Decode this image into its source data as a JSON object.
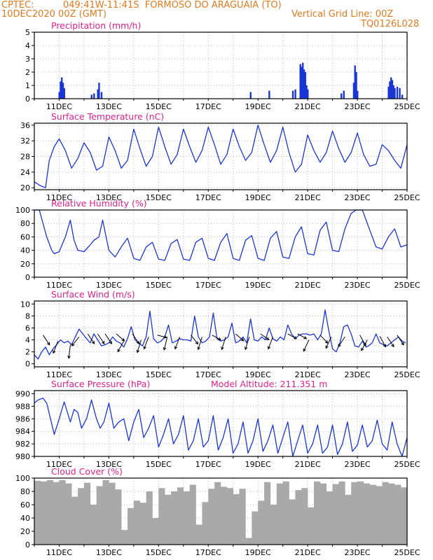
{
  "header": {
    "source": "CPTEC:",
    "location": "049:41W-11:41S  FORMOSO DO ARAGUAIA (TO)",
    "start_time": "10DEC2020 00Z (GMT)",
    "grid_note": "Vertical Grid Line: 00Z",
    "code": "TQ0126L028"
  },
  "x_labels": [
    "11DEC",
    "13DEC",
    "15DEC",
    "17DEC",
    "19DEC",
    "21DEC",
    "23DEC",
    "25DEC"
  ],
  "model_altitude": "Model Altitude: 211.351 m",
  "colors": {
    "line": "#1a35d6",
    "title": "#e0208c",
    "header": "#e07a1f",
    "cloud": "#a9a9a9",
    "arrow": "#000000"
  },
  "chart_data": [
    {
      "type": "bar",
      "title": "Precipitation (mm/h)",
      "x_unit": "days since 10DEC2020 00Z",
      "ylim": [
        0,
        5
      ],
      "yticks": [
        0,
        1,
        2,
        3,
        4,
        5
      ],
      "grid": "dotted",
      "x": [
        1.0,
        1.05,
        1.1,
        1.15,
        1.2,
        2.3,
        2.4,
        2.55,
        2.6,
        2.7,
        8.7,
        9.45,
        10.4,
        10.5,
        10.7,
        10.75,
        10.8,
        10.85,
        10.9,
        10.95,
        11.0,
        12.35,
        12.45,
        12.85,
        12.9,
        12.95,
        13.0,
        14.25,
        14.3,
        14.35,
        14.4,
        14.45,
        14.5,
        14.6,
        14.7,
        14.8
      ],
      "values": [
        0.5,
        1.3,
        1.6,
        1.2,
        0.8,
        0.3,
        0.4,
        0.7,
        1.2,
        0.5,
        0.5,
        0.6,
        0.6,
        0.7,
        2.6,
        2.4,
        2.7,
        2.2,
        2.0,
        1.0,
        0.7,
        0.4,
        0.6,
        1.2,
        2.5,
        2.0,
        0.6,
        0.9,
        1.3,
        1.6,
        1.4,
        1.0,
        0.8,
        0.9,
        0.8,
        0.3
      ]
    },
    {
      "type": "line",
      "title": "Surface Temperature (nC)",
      "x_unit": "days since 10DEC2020 00Z",
      "ylim": [
        19.5,
        36.5
      ],
      "yticks": [
        20,
        24,
        28,
        32,
        36
      ],
      "grid": "dotted",
      "x": [
        0,
        0.25,
        0.45,
        0.6,
        0.8,
        1.0,
        1.25,
        1.5,
        1.75,
        2.0,
        2.25,
        2.5,
        2.75,
        3.0,
        3.25,
        3.5,
        3.75,
        4.0,
        4.25,
        4.5,
        4.75,
        5.0,
        5.25,
        5.5,
        5.75,
        6.0,
        6.25,
        6.5,
        6.75,
        7.0,
        7.25,
        7.5,
        7.75,
        8.0,
        8.25,
        8.5,
        8.75,
        9.0,
        9.25,
        9.5,
        9.75,
        10.0,
        10.25,
        10.5,
        10.75,
        11.0,
        11.25,
        11.5,
        11.75,
        12.0,
        12.25,
        12.5,
        12.75,
        13.0,
        13.25,
        13.5,
        13.75,
        14.0,
        14.25,
        14.5,
        14.75,
        15.0
      ],
      "values": [
        21.5,
        20.5,
        20.0,
        27.0,
        30.5,
        32.5,
        29.5,
        25.0,
        27.5,
        31.5,
        29.0,
        24.5,
        25.5,
        33.0,
        29.5,
        25.0,
        27.0,
        35.0,
        30.0,
        25.5,
        28.0,
        35.5,
        30.5,
        26.0,
        28.5,
        35.0,
        30.5,
        26.5,
        29.5,
        35.5,
        31.0,
        26.0,
        28.5,
        35.0,
        30.5,
        27.0,
        29.0,
        36.0,
        31.0,
        26.5,
        29.5,
        35.5,
        29.0,
        24.0,
        26.0,
        33.5,
        29.5,
        26.5,
        29.0,
        34.5,
        30.0,
        26.5,
        29.0,
        34.0,
        28.5,
        25.5,
        26.0,
        31.0,
        29.5,
        27.0,
        25.0,
        31.0
      ]
    },
    {
      "type": "line",
      "title": "Relative Humidity (%)",
      "x_unit": "days since 10DEC2020 00Z",
      "ylim": [
        0,
        100
      ],
      "yticks": [
        0,
        20,
        40,
        60,
        80,
        100
      ],
      "grid": "dotted",
      "x": [
        0,
        0.2,
        0.5,
        0.7,
        0.8,
        1.0,
        1.25,
        1.45,
        1.6,
        1.75,
        2.0,
        2.25,
        2.4,
        2.6,
        2.75,
        3.0,
        3.25,
        3.5,
        3.75,
        4.0,
        4.25,
        4.5,
        4.75,
        5.0,
        5.25,
        5.5,
        5.75,
        6.0,
        6.25,
        6.5,
        6.75,
        7.0,
        7.25,
        7.5,
        7.75,
        8.0,
        8.25,
        8.5,
        8.75,
        9.0,
        9.25,
        9.5,
        9.75,
        10.0,
        10.25,
        10.5,
        10.75,
        11.0,
        11.25,
        11.5,
        11.75,
        12.0,
        12.25,
        12.5,
        12.75,
        12.95,
        13.2,
        13.5,
        13.75,
        14.0,
        14.25,
        14.5,
        14.75,
        15.0
      ],
      "values": [
        100,
        100,
        60,
        40,
        35,
        38,
        60,
        85,
        55,
        40,
        38,
        48,
        55,
        60,
        85,
        40,
        30,
        45,
        58,
        28,
        25,
        45,
        52,
        27,
        25,
        50,
        56,
        27,
        25,
        52,
        58,
        28,
        25,
        52,
        65,
        28,
        25,
        55,
        62,
        28,
        25,
        58,
        68,
        30,
        28,
        60,
        75,
        35,
        33,
        70,
        82,
        40,
        38,
        72,
        95,
        100,
        100,
        70,
        45,
        42,
        60,
        72,
        45,
        48
      ]
    },
    {
      "type": "line",
      "title": "Surface Wind (m/s)",
      "x_unit": "days since 10DEC2020 00Z",
      "ylim": [
        -0.5,
        10.5
      ],
      "yticks": [
        0,
        2,
        4,
        6,
        8,
        10
      ],
      "grid": "dotted",
      "x": [
        0,
        0.15,
        0.3,
        0.45,
        0.6,
        0.75,
        0.9,
        1.05,
        1.2,
        1.35,
        1.5,
        1.65,
        1.8,
        1.95,
        2.1,
        2.25,
        2.4,
        2.55,
        2.7,
        2.85,
        3.0,
        3.15,
        3.3,
        3.45,
        3.6,
        3.75,
        3.9,
        4.05,
        4.2,
        4.35,
        4.5,
        4.65,
        4.8,
        4.95,
        5.1,
        5.25,
        5.4,
        5.55,
        5.7,
        5.85,
        6.0,
        6.15,
        6.3,
        6.45,
        6.6,
        6.75,
        6.9,
        7.05,
        7.2,
        7.35,
        7.5,
        7.65,
        7.8,
        7.95,
        8.1,
        8.25,
        8.4,
        8.55,
        8.7,
        8.85,
        9.0,
        9.15,
        9.3,
        9.45,
        9.6,
        9.75,
        9.9,
        10.05,
        10.2,
        10.35,
        10.5,
        10.65,
        10.8,
        10.95,
        11.1,
        11.25,
        11.4,
        11.55,
        11.7,
        11.85,
        12.0,
        12.15,
        12.3,
        12.45,
        12.6,
        12.75,
        12.9,
        13.05,
        13.2,
        13.35,
        13.45,
        13.6,
        13.75,
        13.9,
        14.05,
        14.2,
        14.35,
        14.5,
        14.65,
        14.8,
        14.95
      ],
      "values": [
        1.5,
        0.8,
        2.0,
        2.8,
        1.5,
        2.5,
        3.2,
        4.0,
        3.5,
        3.8,
        3.2,
        4.5,
        5.8,
        5.0,
        4.2,
        3.5,
        5.0,
        4.0,
        3.0,
        3.2,
        3.5,
        4.5,
        3.8,
        3.5,
        2.8,
        4.2,
        6.2,
        4.0,
        3.5,
        3.0,
        4.5,
        8.8,
        4.2,
        3.5,
        3.8,
        4.5,
        6.5,
        3.5,
        3.8,
        4.2,
        4.0,
        4.0,
        3.8,
        8.0,
        4.5,
        3.5,
        3.8,
        4.5,
        8.5,
        4.2,
        3.8,
        4.0,
        4.5,
        6.8,
        3.5,
        3.8,
        4.5,
        3.5,
        7.5,
        4.0,
        3.8,
        4.5,
        4.0,
        6.0,
        4.2,
        3.8,
        4.5,
        4.0,
        6.5,
        5.0,
        4.2,
        4.8,
        5.0,
        5.0,
        4.8,
        5.0,
        4.0,
        5.0,
        9.0,
        5.5,
        2.5,
        2.0,
        3.5,
        6.2,
        6.5,
        5.0,
        3.0,
        2.8,
        3.8,
        2.8,
        3.0,
        3.5,
        5.0,
        3.5,
        3.2,
        3.0,
        3.5,
        4.0,
        4.5,
        3.8,
        3.5
      ],
      "arrows": [
        {
          "x": 0.35,
          "y": 4.8,
          "dir_deg": 135
        },
        {
          "x": 0.95,
          "y": 3.8,
          "dir_deg": 210
        },
        {
          "x": 1.45,
          "y": 3.2,
          "dir_deg": 190
        },
        {
          "x": 1.8,
          "y": 4.5,
          "dir_deg": 230
        },
        {
          "x": 2.15,
          "y": 5.0,
          "dir_deg": 135
        },
        {
          "x": 2.55,
          "y": 5.0,
          "dir_deg": 135
        },
        {
          "x": 2.85,
          "y": 5.0,
          "dir_deg": 135
        },
        {
          "x": 3.3,
          "y": 5.0,
          "dir_deg": 120
        },
        {
          "x": 3.6,
          "y": 3.8,
          "dir_deg": 220
        },
        {
          "x": 3.95,
          "y": 5.0,
          "dir_deg": 135
        },
        {
          "x": 4.3,
          "y": 4.0,
          "dir_deg": 205
        },
        {
          "x": 4.6,
          "y": 4.5,
          "dir_deg": 210
        },
        {
          "x": 4.95,
          "y": 4.8,
          "dir_deg": 100
        },
        {
          "x": 5.35,
          "y": 4.5,
          "dir_deg": 200
        },
        {
          "x": 5.85,
          "y": 4.5,
          "dir_deg": 210
        },
        {
          "x": 6.3,
          "y": 4.8,
          "dir_deg": 130
        },
        {
          "x": 6.75,
          "y": 4.5,
          "dir_deg": 205
        },
        {
          "x": 7.15,
          "y": 4.8,
          "dir_deg": 110
        },
        {
          "x": 7.7,
          "y": 4.5,
          "dir_deg": 205
        },
        {
          "x": 8.1,
          "y": 5.0,
          "dir_deg": 120
        },
        {
          "x": 8.65,
          "y": 4.5,
          "dir_deg": 205
        },
        {
          "x": 9.1,
          "y": 5.0,
          "dir_deg": 115
        },
        {
          "x": 9.6,
          "y": 4.5,
          "dir_deg": 210
        },
        {
          "x": 10.2,
          "y": 5.0,
          "dir_deg": 110
        },
        {
          "x": 10.6,
          "y": 5.0,
          "dir_deg": 110
        },
        {
          "x": 11.05,
          "y": 4.0,
          "dir_deg": 215
        },
        {
          "x": 11.5,
          "y": 4.8,
          "dir_deg": 125
        },
        {
          "x": 11.95,
          "y": 4.5,
          "dir_deg": 215
        },
        {
          "x": 12.5,
          "y": 4.5,
          "dir_deg": 225
        },
        {
          "x": 13.1,
          "y": 4.8,
          "dir_deg": 140
        },
        {
          "x": 13.4,
          "y": 4.0,
          "dir_deg": 220
        },
        {
          "x": 13.9,
          "y": 4.6,
          "dir_deg": 140
        },
        {
          "x": 14.2,
          "y": 4.5,
          "dir_deg": 135
        },
        {
          "x": 14.6,
          "y": 4.8,
          "dir_deg": 135
        }
      ]
    },
    {
      "type": "line",
      "title": "Surface Pressure (hPa)",
      "x_unit": "days since 10DEC2020 00Z",
      "ylim": [
        980,
        990.5
      ],
      "yticks": [
        980,
        982,
        984,
        986,
        988,
        990
      ],
      "grid": "dotted",
      "x": [
        0,
        0.15,
        0.35,
        0.5,
        0.65,
        0.8,
        1.0,
        1.2,
        1.45,
        1.6,
        1.75,
        1.9,
        2.1,
        2.3,
        2.5,
        2.65,
        2.8,
        3.0,
        3.2,
        3.4,
        3.6,
        3.8,
        4.0,
        4.2,
        4.4,
        4.6,
        4.8,
        5.0,
        5.2,
        5.4,
        5.6,
        5.8,
        6.0,
        6.2,
        6.4,
        6.6,
        6.8,
        7.0,
        7.2,
        7.4,
        7.6,
        7.8,
        8.0,
        8.2,
        8.4,
        8.6,
        8.8,
        9.0,
        9.2,
        9.4,
        9.6,
        9.8,
        10.0,
        10.2,
        10.4,
        10.6,
        10.8,
        11.0,
        11.2,
        11.4,
        11.6,
        11.8,
        12.0,
        12.2,
        12.4,
        12.6,
        12.8,
        13.0,
        13.2,
        13.4,
        13.6,
        13.8,
        14.0,
        14.2,
        14.4,
        14.6,
        14.8,
        15.0
      ],
      "values": [
        988.5,
        989.0,
        989.3,
        988.5,
        986.0,
        983.5,
        986.0,
        988.7,
        985.5,
        987.5,
        987.0,
        984.5,
        986.0,
        989.0,
        986.0,
        984.5,
        985.5,
        988.5,
        984.5,
        985.5,
        986.0,
        982.5,
        985.5,
        987.5,
        983.0,
        984.5,
        986.5,
        981.5,
        983.5,
        986.0,
        982.0,
        983.5,
        986.5,
        981.0,
        982.5,
        986.0,
        981.5,
        982.5,
        986.5,
        981.0,
        983.0,
        986.0,
        980.5,
        982.0,
        985.5,
        980.5,
        982.5,
        986.0,
        980.8,
        982.5,
        985.0,
        980.5,
        983.0,
        985.5,
        980.0,
        982.5,
        985.0,
        980.5,
        982.0,
        985.0,
        980.5,
        981.5,
        985.0,
        980.3,
        982.0,
        985.5,
        980.8,
        981.8,
        985.0,
        981.5,
        982.5,
        985.8,
        982.0,
        981.0,
        985.5,
        982.0,
        980.0,
        983.0
      ]
    },
    {
      "type": "bar",
      "title": "Cloud Cover (%)",
      "x_unit": "days since 10DEC2020 00Z",
      "ylim": [
        0,
        100
      ],
      "yticks": [
        0,
        20,
        40,
        60,
        80,
        100
      ],
      "grid": "dotted",
      "x": [
        0,
        0.25,
        0.5,
        0.75,
        1.0,
        1.25,
        1.5,
        1.75,
        2.0,
        2.25,
        2.5,
        2.75,
        3.0,
        3.25,
        3.5,
        3.75,
        4.0,
        4.25,
        4.5,
        4.75,
        5.0,
        5.25,
        5.5,
        5.75,
        6.0,
        6.25,
        6.5,
        6.75,
        7.0,
        7.25,
        7.5,
        7.75,
        8.0,
        8.25,
        8.5,
        8.75,
        9.0,
        9.25,
        9.5,
        9.75,
        10.0,
        10.25,
        10.5,
        10.75,
        11.0,
        11.25,
        11.5,
        11.75,
        12.0,
        12.25,
        12.5,
        12.75,
        13.0,
        13.25,
        13.5,
        13.75,
        14.0,
        14.25,
        14.5,
        14.75
      ],
      "values": [
        96,
        95,
        97,
        94,
        97,
        92,
        72,
        85,
        93,
        60,
        88,
        97,
        93,
        83,
        22,
        55,
        66,
        63,
        80,
        40,
        85,
        75,
        80,
        86,
        80,
        90,
        30,
        64,
        84,
        94,
        87,
        85,
        76,
        84,
        10,
        50,
        66,
        94,
        60,
        92,
        95,
        68,
        82,
        85,
        56,
        95,
        92,
        80,
        91,
        95,
        75,
        94,
        95,
        92,
        90,
        88,
        94,
        92,
        90,
        86
      ]
    }
  ]
}
